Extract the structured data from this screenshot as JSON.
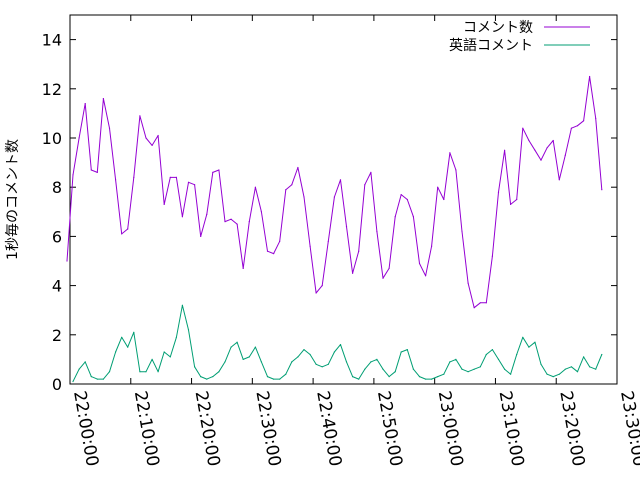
{
  "chart_data": {
    "type": "line",
    "title": "",
    "xlabel": "",
    "ylabel": "1秒毎のコメント数",
    "xlim": [
      "22:00:00",
      "23:30:00"
    ],
    "ylim": [
      0,
      15
    ],
    "x_ticks": [
      "22:00:00",
      "22:10:00",
      "22:20:00",
      "22:30:00",
      "22:40:00",
      "22:50:00",
      "23:00:00",
      "23:10:00",
      "23:20:00",
      "23:30:00"
    ],
    "y_ticks": [
      "0",
      "2",
      "4",
      "6",
      "8",
      "10",
      "12",
      "14"
    ],
    "grid": false,
    "legend_position": "top-right",
    "series": [
      {
        "name": "コメント数",
        "color": "#9400d3",
        "x": [
          "21:59:30",
          "22:00:30",
          "22:01:30",
          "22:02:30",
          "22:03:30",
          "22:04:30",
          "22:05:30",
          "22:06:30",
          "22:07:30",
          "22:08:30",
          "22:09:30",
          "22:10:30",
          "22:11:30",
          "22:12:30",
          "22:13:30",
          "22:14:30",
          "22:15:30",
          "22:16:30",
          "22:17:30",
          "22:18:30",
          "22:19:30",
          "22:20:30",
          "22:21:30",
          "22:22:30",
          "22:23:30",
          "22:24:30",
          "22:25:30",
          "22:26:30",
          "22:27:30",
          "22:28:30",
          "22:29:30",
          "22:30:30",
          "22:31:30",
          "22:32:30",
          "22:33:30",
          "22:34:30",
          "22:35:30",
          "22:36:30",
          "22:37:30",
          "22:38:30",
          "22:39:30",
          "22:40:30",
          "22:41:30",
          "22:42:30",
          "22:43:30",
          "22:44:30",
          "22:45:30",
          "22:46:30",
          "22:47:30",
          "22:48:30",
          "22:49:30",
          "22:50:30",
          "22:51:30",
          "22:52:30",
          "22:53:30",
          "22:54:30",
          "22:55:30",
          "22:56:30",
          "22:57:30",
          "22:58:30",
          "22:59:30",
          "23:00:30",
          "23:01:30",
          "23:02:30",
          "23:03:30",
          "23:04:30",
          "23:05:30",
          "23:06:30",
          "23:07:30",
          "23:08:30",
          "23:09:30",
          "23:10:30",
          "23:11:30",
          "23:12:30",
          "23:13:30",
          "23:14:30",
          "23:15:30",
          "23:16:30",
          "23:17:30",
          "23:18:30",
          "23:19:30",
          "23:20:30",
          "23:21:30",
          "23:22:30",
          "23:23:30",
          "23:24:30",
          "23:25:30",
          "23:26:30",
          "23:27:30"
        ],
        "y": [
          5.0,
          8.5,
          10.0,
          11.4,
          8.7,
          8.6,
          11.6,
          10.4,
          8.3,
          6.1,
          6.3,
          8.4,
          10.9,
          10.0,
          9.7,
          10.1,
          7.3,
          8.4,
          8.4,
          6.8,
          8.2,
          8.1,
          6.0,
          6.9,
          8.6,
          8.7,
          6.6,
          6.7,
          6.5,
          4.7,
          6.6,
          8.0,
          7.0,
          5.4,
          5.3,
          5.8,
          7.9,
          8.1,
          8.8,
          7.6,
          5.6,
          3.7,
          4.0,
          5.8,
          7.6,
          8.3,
          6.4,
          4.5,
          5.4,
          8.1,
          8.6,
          6.2,
          4.3,
          4.7,
          6.8,
          7.7,
          7.5,
          6.8,
          4.9,
          4.4,
          5.6,
          8.0,
          7.5,
          9.4,
          8.7,
          6.2,
          4.1,
          3.1,
          3.3,
          3.3,
          5.2,
          7.8,
          9.5,
          7.3,
          7.5,
          10.4,
          9.9,
          9.5,
          9.1,
          9.6,
          9.9,
          8.3,
          9.3,
          10.4,
          10.5,
          10.7,
          12.5,
          10.8,
          7.9
        ]
      },
      {
        "name": "英語コメント",
        "color": "#009e73",
        "x": [
          "22:00:30",
          "22:01:30",
          "22:02:30",
          "22:03:30",
          "22:04:30",
          "22:05:30",
          "22:06:30",
          "22:07:30",
          "22:08:30",
          "22:09:30",
          "22:10:30",
          "22:11:30",
          "22:12:30",
          "22:13:30",
          "22:14:30",
          "22:15:30",
          "22:16:30",
          "22:17:30",
          "22:18:30",
          "22:19:30",
          "22:20:30",
          "22:21:30",
          "22:22:30",
          "22:23:30",
          "22:24:30",
          "22:25:30",
          "22:26:30",
          "22:27:30",
          "22:28:30",
          "22:29:30",
          "22:30:30",
          "22:31:30",
          "22:32:30",
          "22:33:30",
          "22:34:30",
          "22:35:30",
          "22:36:30",
          "22:37:30",
          "22:38:30",
          "22:39:30",
          "22:40:30",
          "22:41:30",
          "22:42:30",
          "22:43:30",
          "22:44:30",
          "22:45:30",
          "22:46:30",
          "22:47:30",
          "22:48:30",
          "22:49:30",
          "22:50:30",
          "22:51:30",
          "22:52:30",
          "22:53:30",
          "22:54:30",
          "22:55:30",
          "22:56:30",
          "22:57:30",
          "22:58:30",
          "22:59:30",
          "23:00:30",
          "23:01:30",
          "23:02:30",
          "23:03:30",
          "23:04:30",
          "23:05:30",
          "23:06:30",
          "23:07:30",
          "23:08:30",
          "23:09:30",
          "23:10:30",
          "23:11:30",
          "23:12:30",
          "23:13:30",
          "23:14:30",
          "23:15:30",
          "23:16:30",
          "23:17:30",
          "23:18:30",
          "23:19:30",
          "23:20:30",
          "23:21:30",
          "23:22:30",
          "23:23:30",
          "23:24:30",
          "23:25:30",
          "23:26:30",
          "23:27:30"
        ],
        "y": [
          0.1,
          0.6,
          0.9,
          0.3,
          0.2,
          0.2,
          0.5,
          1.3,
          1.9,
          1.5,
          2.1,
          0.5,
          0.5,
          1.0,
          0.5,
          1.3,
          1.1,
          1.9,
          3.2,
          2.2,
          0.7,
          0.3,
          0.2,
          0.3,
          0.5,
          0.9,
          1.5,
          1.7,
          1.0,
          1.1,
          1.5,
          0.9,
          0.3,
          0.2,
          0.2,
          0.4,
          0.9,
          1.1,
          1.4,
          1.2,
          0.8,
          0.7,
          0.8,
          1.3,
          1.6,
          0.9,
          0.3,
          0.2,
          0.6,
          0.9,
          1.0,
          0.6,
          0.3,
          0.5,
          1.3,
          1.4,
          0.6,
          0.3,
          0.2,
          0.2,
          0.3,
          0.4,
          0.9,
          1.0,
          0.6,
          0.5,
          0.6,
          0.7,
          1.2,
          1.4,
          1.0,
          0.6,
          0.4,
          1.2,
          1.9,
          1.5,
          1.7,
          0.8,
          0.4,
          0.3,
          0.4,
          0.6,
          0.7,
          0.5,
          1.1,
          0.7,
          0.6,
          1.2
        ]
      }
    ]
  }
}
